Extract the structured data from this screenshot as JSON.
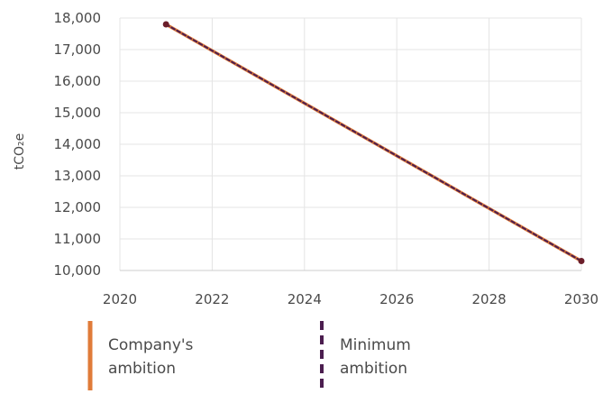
{
  "chart_data": {
    "type": "line",
    "title": "",
    "xlabel": "",
    "ylabel": "tCO₂e",
    "xlim": [
      2020,
      2030
    ],
    "ylim": [
      10000,
      18000
    ],
    "x_ticks": [
      2020,
      2022,
      2024,
      2026,
      2028,
      2030
    ],
    "x_tick_labels": [
      "2020",
      "2022",
      "2024",
      "2026",
      "2028",
      "2030"
    ],
    "y_ticks": [
      10000,
      11000,
      12000,
      13000,
      14000,
      15000,
      16000,
      17000,
      18000
    ],
    "y_tick_labels": [
      "10,000",
      "11,000",
      "12,000",
      "13,000",
      "14,000",
      "15,000",
      "16,000",
      "17,000",
      "18,000"
    ],
    "grid": true,
    "legend_position": "bottom",
    "series": [
      {
        "name": "Company's ambition",
        "x": [
          2021,
          2030
        ],
        "y": [
          17800,
          10300
        ],
        "color": "#e07b39",
        "style": "solid"
      },
      {
        "name": "Minimum ambition",
        "x": [
          2021,
          2030
        ],
        "y": [
          17800,
          10300
        ],
        "color": "#4b1d4f",
        "style": "dashed"
      }
    ],
    "legend": [
      {
        "line1": "Company's",
        "line2": "ambition",
        "color": "#e07b39",
        "style": "solid"
      },
      {
        "line1": "Minimum",
        "line2": "ambition",
        "color": "#4b1d4f",
        "style": "dashed"
      }
    ],
    "colors": {
      "grid": "#e4e4e4",
      "axis": "#cccccc",
      "marker": "#6b1e2a"
    }
  }
}
